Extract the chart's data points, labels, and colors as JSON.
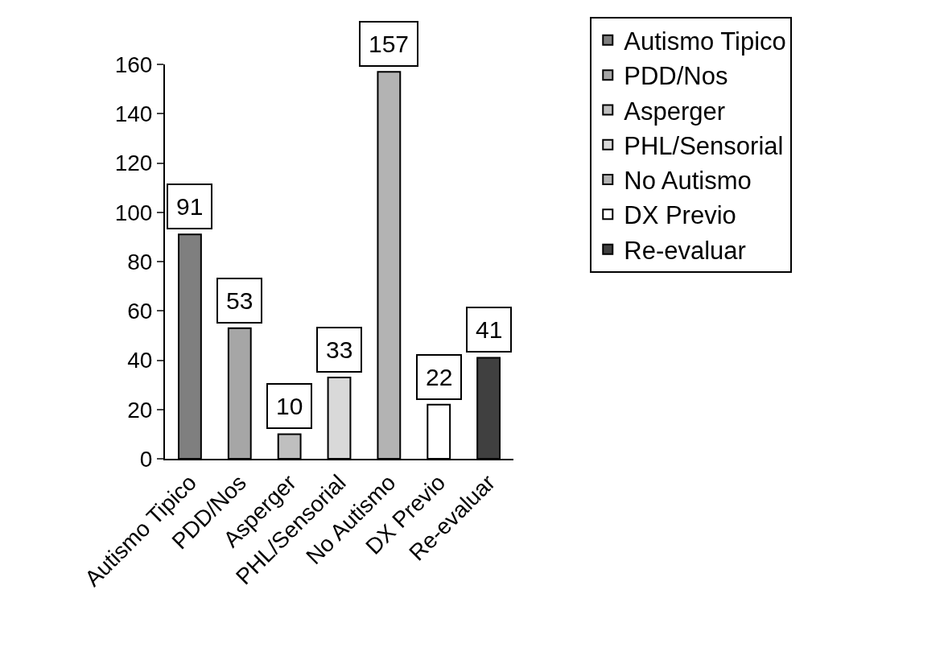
{
  "chart_data": {
    "type": "bar",
    "categories": [
      "Autismo Tipico",
      "PDD/Nos",
      "Asperger",
      "PHL/Sensorial",
      "No Autismo",
      "DX Previo",
      "Re-evaluar"
    ],
    "series": [
      {
        "name": "Autismo Tipico",
        "color": "#7f7f7f",
        "values": [
          91,
          null,
          null,
          null,
          null,
          null,
          null
        ]
      },
      {
        "name": "PDD/Nos",
        "color": "#a6a6a6",
        "values": [
          null,
          53,
          null,
          null,
          null,
          null,
          null
        ]
      },
      {
        "name": "Asperger",
        "color": "#bfbfbf",
        "values": [
          null,
          null,
          10,
          null,
          null,
          null,
          null
        ]
      },
      {
        "name": "PHL/Sensorial",
        "color": "#d9d9d9",
        "values": [
          null,
          null,
          null,
          33,
          null,
          null,
          null
        ]
      },
      {
        "name": "No Autismo",
        "color": "#b3b3b3",
        "values": [
          null,
          null,
          null,
          null,
          157,
          null,
          null
        ]
      },
      {
        "name": "DX Previo",
        "color": "#ffffff",
        "values": [
          null,
          null,
          null,
          null,
          null,
          22,
          null
        ]
      },
      {
        "name": "Re-evaluar",
        "color": "#404040",
        "values": [
          null,
          null,
          null,
          null,
          null,
          null,
          41
        ]
      }
    ],
    "ylim": [
      0,
      160
    ],
    "yticks": [
      0,
      20,
      40,
      60,
      80,
      100,
      120,
      140,
      160
    ],
    "grid": false,
    "legend": "right",
    "data_labels": true
  }
}
